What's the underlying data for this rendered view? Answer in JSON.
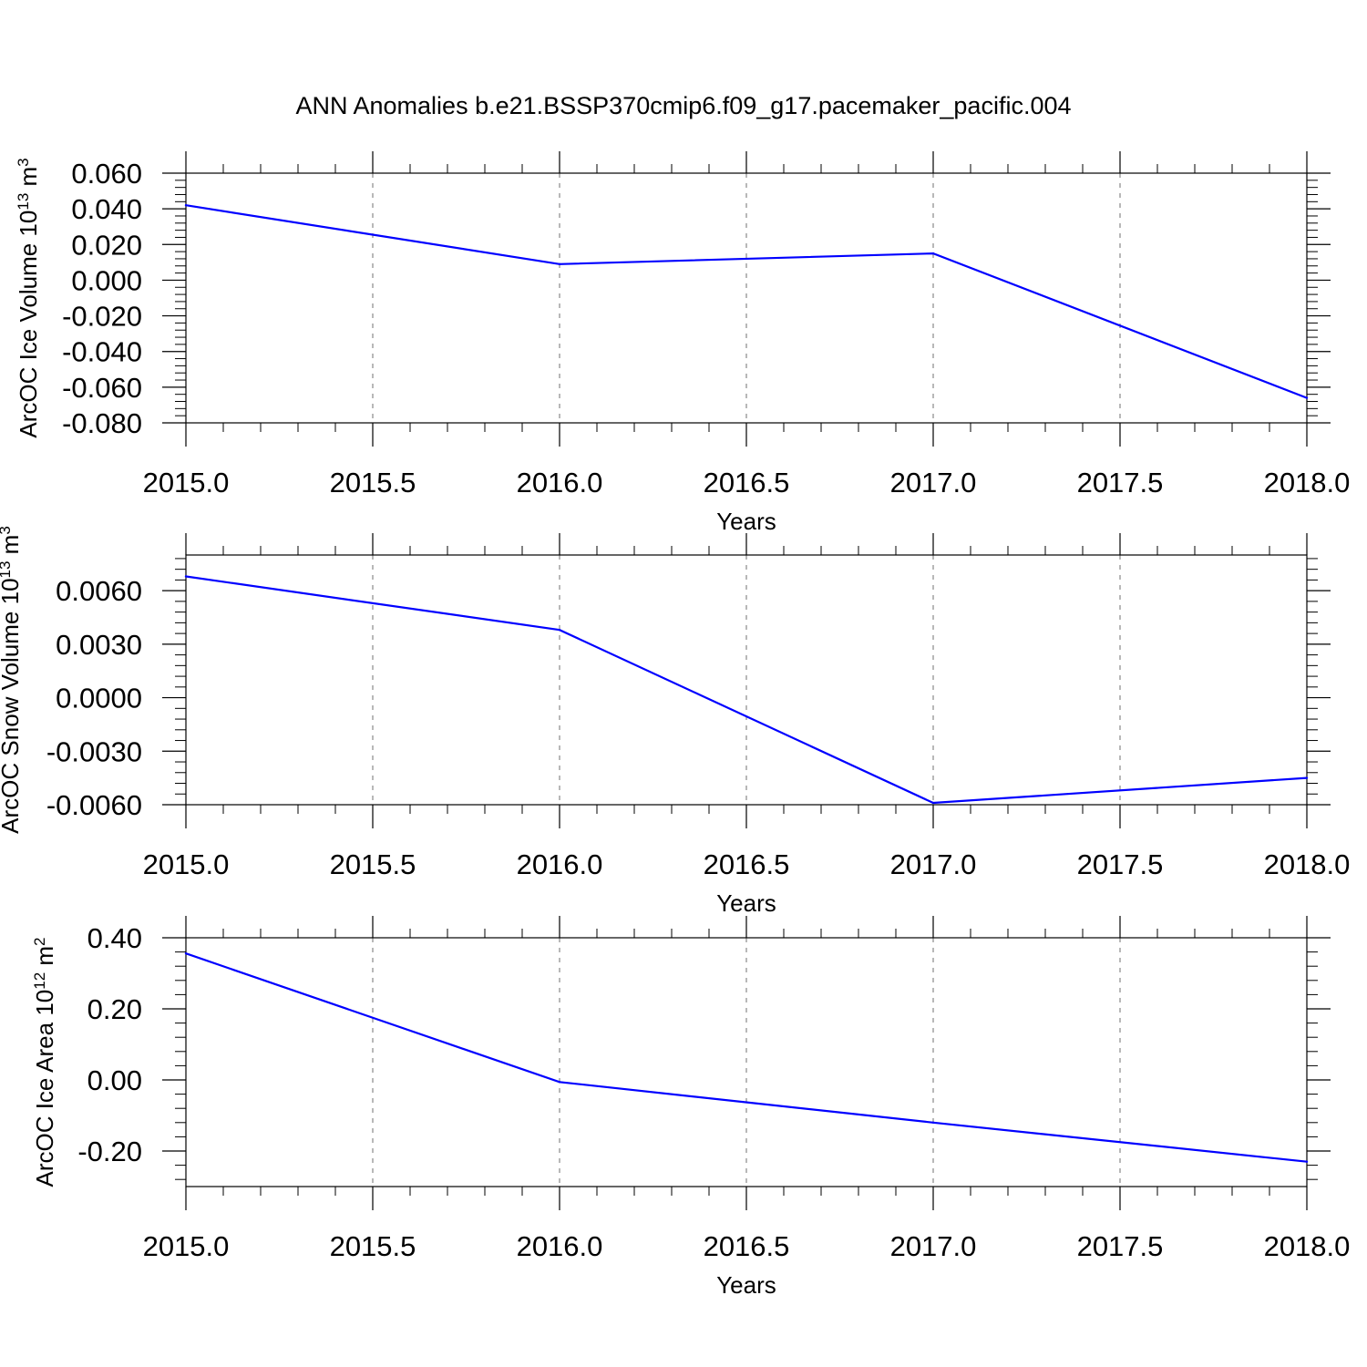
{
  "figure_title": "ANN Anomalies b.e21.BSSP370cmip6.f09_g17.pacemaker_pacific.004",
  "colors": {
    "line": "#0000ff",
    "frame": "#000000",
    "grid": "#888888",
    "background": "#ffffff"
  },
  "chart_data": [
    {
      "type": "line",
      "xlabel": "Years",
      "ylabel": {
        "text": "ArcOC Ice Volume 10",
        "sup": "13",
        "unit": " m",
        "unit_sup": "3"
      },
      "xlim": [
        2015.0,
        2018.0
      ],
      "xticks": [
        "2015.0",
        "2015.5",
        "2016.0",
        "2016.5",
        "2017.0",
        "2017.5",
        "2018.0"
      ],
      "ylim": [
        -0.08,
        0.06
      ],
      "yticks": [
        "0.060",
        "0.040",
        "0.020",
        "0.000",
        "-0.020",
        "-0.040",
        "-0.060",
        "-0.080"
      ],
      "grid": "vertical dashed at major x ticks",
      "x": [
        2015,
        2016,
        2017,
        2018
      ],
      "y": [
        0.042,
        0.009,
        0.015,
        -0.066
      ]
    },
    {
      "type": "line",
      "xlabel": "Years",
      "ylabel": {
        "text": "ArcOC Snow Volume 10",
        "sup": "13",
        "unit": " m",
        "unit_sup": "3"
      },
      "xlim": [
        2015.0,
        2018.0
      ],
      "xticks": [
        "2015.0",
        "2015.5",
        "2016.0",
        "2016.5",
        "2017.0",
        "2017.5",
        "2018.0"
      ],
      "ylim": [
        -0.006,
        0.008
      ],
      "yticks": [
        "0.0060",
        "0.0030",
        "0.0000",
        "-0.0030",
        "-0.0060"
      ],
      "grid": "vertical dashed at major x ticks",
      "x": [
        2015,
        2016,
        2017,
        2018
      ],
      "y": [
        0.0068,
        0.0038,
        -0.0059,
        -0.0045
      ]
    },
    {
      "type": "line",
      "xlabel": "Years",
      "ylabel": {
        "text": "ArcOC Ice Area 10",
        "sup": "12",
        "unit": " m",
        "unit_sup": "2"
      },
      "xlim": [
        2015.0,
        2018.0
      ],
      "xticks": [
        "2015.0",
        "2015.5",
        "2016.0",
        "2016.5",
        "2017.0",
        "2017.5",
        "2018.0"
      ],
      "ylim": [
        -0.3,
        0.4
      ],
      "yticks": [
        "0.40",
        "0.20",
        "0.00",
        "-0.20"
      ],
      "grid": "vertical dashed at major x ticks",
      "x": [
        2015,
        2016,
        2017,
        2018
      ],
      "y": [
        0.356,
        -0.006,
        -0.12,
        -0.23
      ]
    }
  ]
}
